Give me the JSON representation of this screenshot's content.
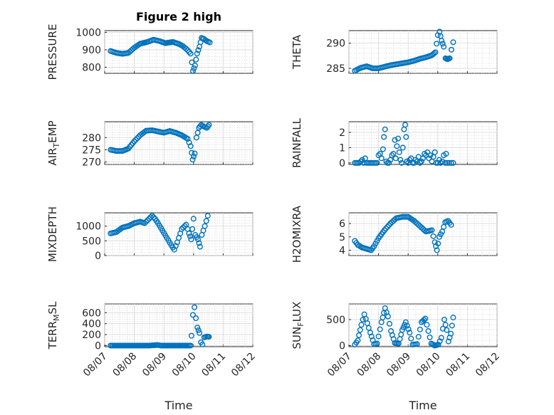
{
  "figure": {
    "title": "Figure 2 high",
    "marker_color": "#0072bd",
    "xlabel": "Time"
  },
  "chart_data": [
    {
      "type": "scatter",
      "id": "pressure",
      "ylabel": "PRESSURE",
      "title": "Figure 2 high",
      "xlim": [
        "08/07",
        "08/12"
      ],
      "ylim": [
        765,
        1010
      ],
      "yticks": [
        800,
        900,
        1000
      ],
      "xtick_labels": [],
      "grid": true,
      "minor_grid": true,
      "profile": [
        [
          0.2,
          893
        ],
        [
          0.4,
          882
        ],
        [
          0.6,
          877
        ],
        [
          0.8,
          882
        ],
        [
          1.0,
          912
        ],
        [
          1.2,
          935
        ],
        [
          1.45,
          945
        ],
        [
          1.65,
          958
        ],
        [
          1.85,
          950
        ],
        [
          2.05,
          938
        ],
        [
          2.3,
          945
        ],
        [
          2.5,
          934
        ],
        [
          2.65,
          920
        ],
        [
          2.8,
          898
        ],
        [
          2.9,
          878
        ],
        [
          2.98,
          778
        ],
        [
          3.05,
          810
        ],
        [
          3.12,
          878
        ],
        [
          3.2,
          918
        ],
        [
          3.27,
          968
        ],
        [
          3.35,
          962
        ],
        [
          3.45,
          950
        ],
        [
          3.55,
          942
        ]
      ]
    },
    {
      "type": "scatter",
      "id": "theta",
      "ylabel": "THETA",
      "xlim": [
        "08/07",
        "08/12"
      ],
      "ylim": [
        284,
        292.5
      ],
      "yticks": [
        285,
        290
      ],
      "xtick_labels": [],
      "grid": true,
      "minor_grid": true,
      "profile": [
        [
          0.2,
          284.5
        ],
        [
          0.4,
          285.1
        ],
        [
          0.6,
          285.4
        ],
        [
          0.8,
          285.0
        ],
        [
          1.0,
          285.0
        ],
        [
          1.2,
          285.3
        ],
        [
          1.4,
          285.6
        ],
        [
          1.6,
          285.8
        ],
        [
          1.8,
          286.0
        ],
        [
          2.0,
          286.2
        ],
        [
          2.2,
          286.5
        ],
        [
          2.4,
          286.9
        ],
        [
          2.6,
          287.2
        ],
        [
          2.8,
          287.6
        ],
        [
          2.92,
          288.2
        ],
        [
          3.0,
          291.6
        ],
        [
          3.06,
          292.3
        ],
        [
          3.13,
          290.5
        ],
        [
          3.2,
          289.3
        ],
        [
          3.26,
          287.0
        ],
        [
          3.33,
          286.8
        ],
        [
          3.4,
          287.0
        ],
        [
          3.46,
          288.7
        ],
        [
          3.52,
          290.2
        ]
      ]
    },
    {
      "type": "scatter",
      "id": "air_temp",
      "ylabel": "AIR",
      "ylabel_sub": "T",
      "ylabel_suffix": "EMP",
      "xlim": [
        "08/07",
        "08/12"
      ],
      "ylim": [
        269,
        286.5
      ],
      "yticks": [
        270,
        275,
        280
      ],
      "xtick_labels": [],
      "grid": true,
      "minor_grid": true,
      "profile": [
        [
          0.2,
          275.0
        ],
        [
          0.4,
          274.5
        ],
        [
          0.6,
          274.5
        ],
        [
          0.8,
          275.5
        ],
        [
          1.0,
          278.5
        ],
        [
          1.2,
          281.0
        ],
        [
          1.4,
          282.8
        ],
        [
          1.6,
          283.0
        ],
        [
          1.8,
          282.5
        ],
        [
          2.0,
          282.0
        ],
        [
          2.2,
          282.7
        ],
        [
          2.4,
          282.0
        ],
        [
          2.6,
          281.0
        ],
        [
          2.8,
          279.5
        ],
        [
          2.9,
          276.5
        ],
        [
          2.97,
          271.0
        ],
        [
          3.04,
          273.5
        ],
        [
          3.1,
          280.0
        ],
        [
          3.18,
          284.0
        ],
        [
          3.26,
          285.2
        ],
        [
          3.35,
          284.5
        ],
        [
          3.45,
          284.0
        ],
        [
          3.52,
          285.2
        ]
      ]
    },
    {
      "type": "scatter",
      "id": "rainfall",
      "ylabel": "RAINFALL",
      "xlim": [
        "08/07",
        "08/12"
      ],
      "ylim": [
        -0.1,
        2.7
      ],
      "yticks": [
        0,
        1,
        2
      ],
      "xtick_labels": [],
      "grid": true,
      "minor_grid": true,
      "points": [
        [
          0.2,
          0
        ],
        [
          0.25,
          0
        ],
        [
          0.3,
          0
        ],
        [
          0.35,
          0
        ],
        [
          0.4,
          0.1
        ],
        [
          0.45,
          0.2
        ],
        [
          0.5,
          0
        ],
        [
          0.55,
          0.3
        ],
        [
          0.6,
          0
        ],
        [
          0.65,
          0
        ],
        [
          0.7,
          0
        ],
        [
          0.75,
          0
        ],
        [
          0.8,
          0
        ],
        [
          0.85,
          0
        ],
        [
          0.9,
          0
        ],
        [
          0.95,
          0
        ],
        [
          1.0,
          0.5
        ],
        [
          1.05,
          0.6
        ],
        [
          1.1,
          0.3
        ],
        [
          1.15,
          0.9
        ],
        [
          1.18,
          1.7
        ],
        [
          1.22,
          2.2
        ],
        [
          1.26,
          0.1
        ],
        [
          1.3,
          0
        ],
        [
          1.35,
          0
        ],
        [
          1.4,
          0.2
        ],
        [
          1.45,
          0.5
        ],
        [
          1.5,
          0.6
        ],
        [
          1.55,
          1.5
        ],
        [
          1.58,
          0.3
        ],
        [
          1.62,
          1.1
        ],
        [
          1.66,
          1.6
        ],
        [
          1.7,
          0.7
        ],
        [
          1.74,
          0.2
        ],
        [
          1.78,
          0
        ],
        [
          1.82,
          1.0
        ],
        [
          1.86,
          2.2
        ],
        [
          1.9,
          2.5
        ],
        [
          1.93,
          1.7
        ],
        [
          1.96,
          0.1
        ],
        [
          2.0,
          0
        ],
        [
          2.05,
          0.2
        ],
        [
          2.1,
          0.3
        ],
        [
          2.15,
          0
        ],
        [
          2.2,
          0
        ],
        [
          2.25,
          0.2
        ],
        [
          2.3,
          0.1
        ],
        [
          2.35,
          0.4
        ],
        [
          2.4,
          0
        ],
        [
          2.45,
          0.1
        ],
        [
          2.5,
          0.3
        ],
        [
          2.55,
          0.6
        ],
        [
          2.6,
          0.5
        ],
        [
          2.65,
          0.7
        ],
        [
          2.7,
          0.3
        ],
        [
          2.75,
          0.5
        ],
        [
          2.8,
          0.1
        ],
        [
          2.85,
          0.4
        ],
        [
          2.9,
          0.7
        ],
        [
          2.95,
          0
        ],
        [
          3.0,
          0
        ],
        [
          3.05,
          0.2
        ],
        [
          3.1,
          0
        ],
        [
          3.15,
          0.1
        ],
        [
          3.2,
          0.5
        ],
        [
          3.25,
          0
        ],
        [
          3.28,
          0.6
        ],
        [
          3.32,
          0
        ],
        [
          3.38,
          0
        ],
        [
          3.45,
          0
        ],
        [
          3.52,
          0
        ]
      ]
    },
    {
      "type": "scatter",
      "id": "mixdepth",
      "ylabel": "MIXDEPTH",
      "xlim": [
        "08/07",
        "08/12"
      ],
      "ylim": [
        0,
        1450
      ],
      "yticks": [
        0,
        500,
        1000
      ],
      "xtick_labels": [],
      "grid": true,
      "minor_grid": true,
      "profile": [
        [
          0.2,
          750
        ],
        [
          0.4,
          800
        ],
        [
          0.6,
          950
        ],
        [
          0.8,
          1000
        ],
        [
          1.0,
          1100
        ],
        [
          1.2,
          1150
        ],
        [
          1.35,
          1100
        ],
        [
          1.5,
          1250
        ],
        [
          1.6,
          1350
        ],
        [
          1.7,
          1250
        ],
        [
          1.8,
          1100
        ],
        [
          1.95,
          850
        ],
        [
          2.1,
          600
        ],
        [
          2.25,
          350
        ],
        [
          2.35,
          200
        ],
        [
          2.45,
          450
        ],
        [
          2.6,
          900
        ],
        [
          2.75,
          1050
        ],
        [
          2.85,
          750
        ],
        [
          2.92,
          550
        ],
        [
          3.0,
          1250
        ],
        [
          3.06,
          700
        ],
        [
          3.15,
          550
        ],
        [
          3.22,
          300
        ],
        [
          3.28,
          700
        ],
        [
          3.38,
          1000
        ],
        [
          3.48,
          1350
        ]
      ]
    },
    {
      "type": "scatter",
      "id": "h2omixra",
      "ylabel": "H2OMIXRA",
      "xlim": [
        "08/07",
        "08/12"
      ],
      "ylim": [
        3.6,
        6.8
      ],
      "yticks": [
        4,
        5,
        6
      ],
      "xtick_labels": [],
      "grid": true,
      "minor_grid": true,
      "profile": [
        [
          0.2,
          4.7
        ],
        [
          0.3,
          4.4
        ],
        [
          0.45,
          4.2
        ],
        [
          0.6,
          4.1
        ],
        [
          0.75,
          4.0
        ],
        [
          0.85,
          4.3
        ],
        [
          1.0,
          4.9
        ],
        [
          1.2,
          5.5
        ],
        [
          1.4,
          6.0
        ],
        [
          1.6,
          6.4
        ],
        [
          1.8,
          6.5
        ],
        [
          2.0,
          6.5
        ],
        [
          2.2,
          6.2
        ],
        [
          2.4,
          5.8
        ],
        [
          2.6,
          5.4
        ],
        [
          2.8,
          5.5
        ],
        [
          2.9,
          4.6
        ],
        [
          2.97,
          4.0
        ],
        [
          3.05,
          5.0
        ],
        [
          3.15,
          5.4
        ],
        [
          3.25,
          6.1
        ],
        [
          3.35,
          6.2
        ],
        [
          3.45,
          5.9
        ]
      ]
    },
    {
      "type": "scatter",
      "id": "terr_msl",
      "ylabel": "TERR",
      "ylabel_sub": "M",
      "ylabel_suffix": "SL",
      "xlim": [
        "08/07",
        "08/12"
      ],
      "ylim": [
        -20,
        760
      ],
      "yticks": [
        0,
        200,
        400,
        600
      ],
      "xtick_labels": [
        "08/07",
        "08/08",
        "08/09",
        "08/10",
        "08/11",
        "08/12"
      ],
      "grid": true,
      "minor_grid": true,
      "profile": [
        [
          0.2,
          0
        ],
        [
          1.5,
          0
        ],
        [
          1.8,
          10
        ],
        [
          1.9,
          0
        ],
        [
          2.9,
          0
        ],
        [
          2.93,
          180
        ],
        [
          2.98,
          560
        ],
        [
          3.03,
          700
        ],
        [
          3.08,
          500
        ],
        [
          3.13,
          330
        ],
        [
          3.2,
          230
        ],
        [
          3.25,
          60
        ],
        [
          3.3,
          20
        ],
        [
          3.36,
          150
        ],
        [
          3.45,
          165
        ],
        [
          3.52,
          160
        ]
      ]
    },
    {
      "type": "scatter",
      "id": "sun_flux",
      "ylabel": "SUN",
      "ylabel_sub": "F",
      "ylabel_suffix": "LUX",
      "xlim": [
        "08/07",
        "08/12"
      ],
      "ylim": [
        -20,
        800
      ],
      "yticks": [
        0,
        500
      ],
      "xtick_labels": [
        "08/07",
        "08/08",
        "08/09",
        "08/10",
        "08/11",
        "08/12"
      ],
      "grid": true,
      "minor_grid": true,
      "profile": [
        [
          0.2,
          20
        ],
        [
          0.3,
          100
        ],
        [
          0.42,
          400
        ],
        [
          0.52,
          600
        ],
        [
          0.62,
          430
        ],
        [
          0.72,
          250
        ],
        [
          0.85,
          30
        ],
        [
          0.95,
          40
        ],
        [
          1.1,
          450
        ],
        [
          1.22,
          720
        ],
        [
          1.32,
          560
        ],
        [
          1.42,
          280
        ],
        [
          1.55,
          50
        ],
        [
          1.68,
          40
        ],
        [
          1.8,
          300
        ],
        [
          1.92,
          450
        ],
        [
          2.05,
          250
        ],
        [
          2.15,
          20
        ],
        [
          2.3,
          30
        ],
        [
          2.45,
          450
        ],
        [
          2.58,
          520
        ],
        [
          2.68,
          280
        ],
        [
          2.78,
          40
        ],
        [
          2.9,
          0
        ],
        [
          3.02,
          20
        ],
        [
          3.12,
          150
        ],
        [
          3.22,
          500
        ],
        [
          3.3,
          300
        ],
        [
          3.36,
          80
        ],
        [
          3.44,
          230
        ],
        [
          3.52,
          540
        ]
      ]
    }
  ]
}
